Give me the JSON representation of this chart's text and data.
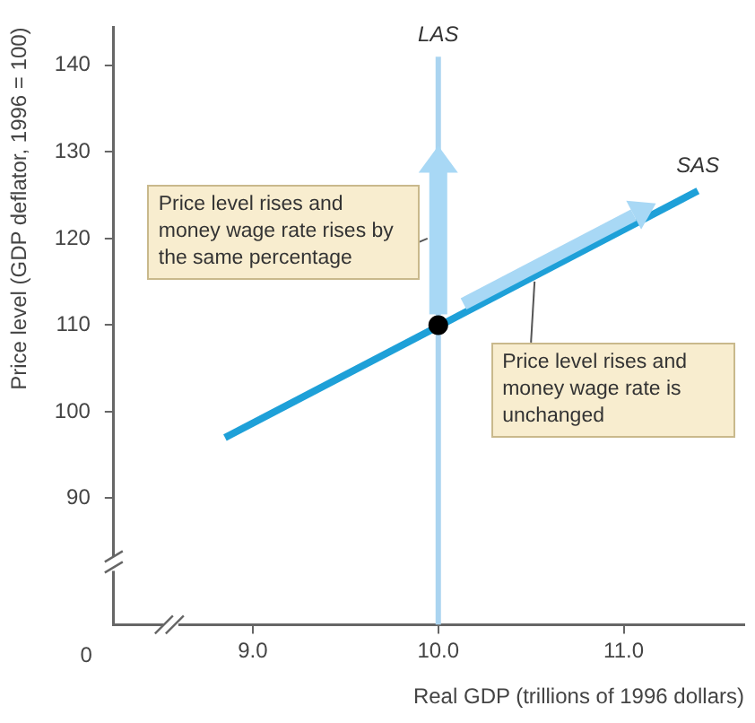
{
  "chart_data": {
    "type": "line",
    "xlabel": "Real GDP (trillions of 1996 dollars)",
    "ylabel": "Price level (GDP deflator, 1996 = 100)",
    "xlim": [
      8.25,
      11.65
    ],
    "ylim": [
      75.4,
      144.4
    ],
    "xticks": [
      {
        "value": 9,
        "label": "9.0"
      },
      {
        "value": 10,
        "label": "10.0"
      },
      {
        "value": 11,
        "label": "11.0"
      }
    ],
    "yticks": [
      90,
      100,
      110,
      120,
      130,
      140
    ],
    "grid": false,
    "legend": false,
    "marker": "none",
    "series": [
      {
        "name": "SAS",
        "color": "#1ea0d8",
        "x": [
          8.85,
          11.4
        ],
        "values": [
          97,
          125.5
        ]
      },
      {
        "name": "LAS",
        "color": "#aad4f0",
        "x": [
          10,
          10
        ],
        "values": [
          75.4,
          141
        ]
      },
      {
        "type": "scatter",
        "marker": "circle",
        "color": "#000000",
        "x": [
          10
        ],
        "values": [
          110
        ]
      }
    ],
    "annotations": [
      "0",
      {
        "text": "Price level rises and money wage rate rises by the same percentage",
        "x": 10,
        "y": 120
      },
      {
        "text": "Price level rises and money wage rate is unchanged",
        "x": 10.5,
        "y": 115.65
      }
    ]
  }
}
